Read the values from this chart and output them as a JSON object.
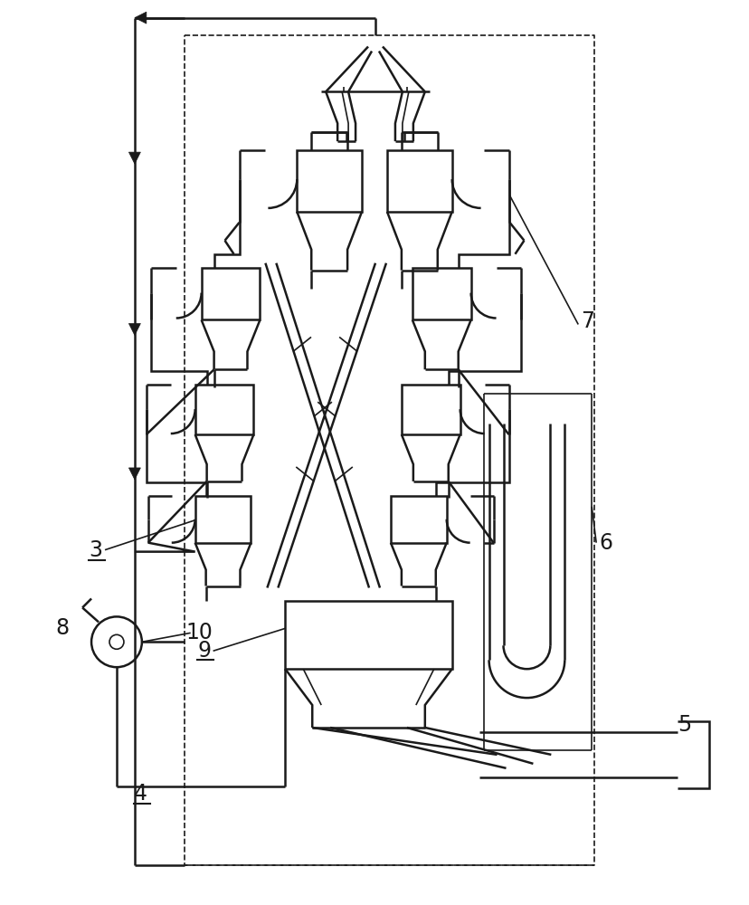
{
  "bg_color": "#ffffff",
  "line_color": "#1a1a1a",
  "lw": 1.8,
  "lw_thin": 1.2,
  "fig_width": 8.29,
  "fig_height": 10.0,
  "dpi": 100
}
